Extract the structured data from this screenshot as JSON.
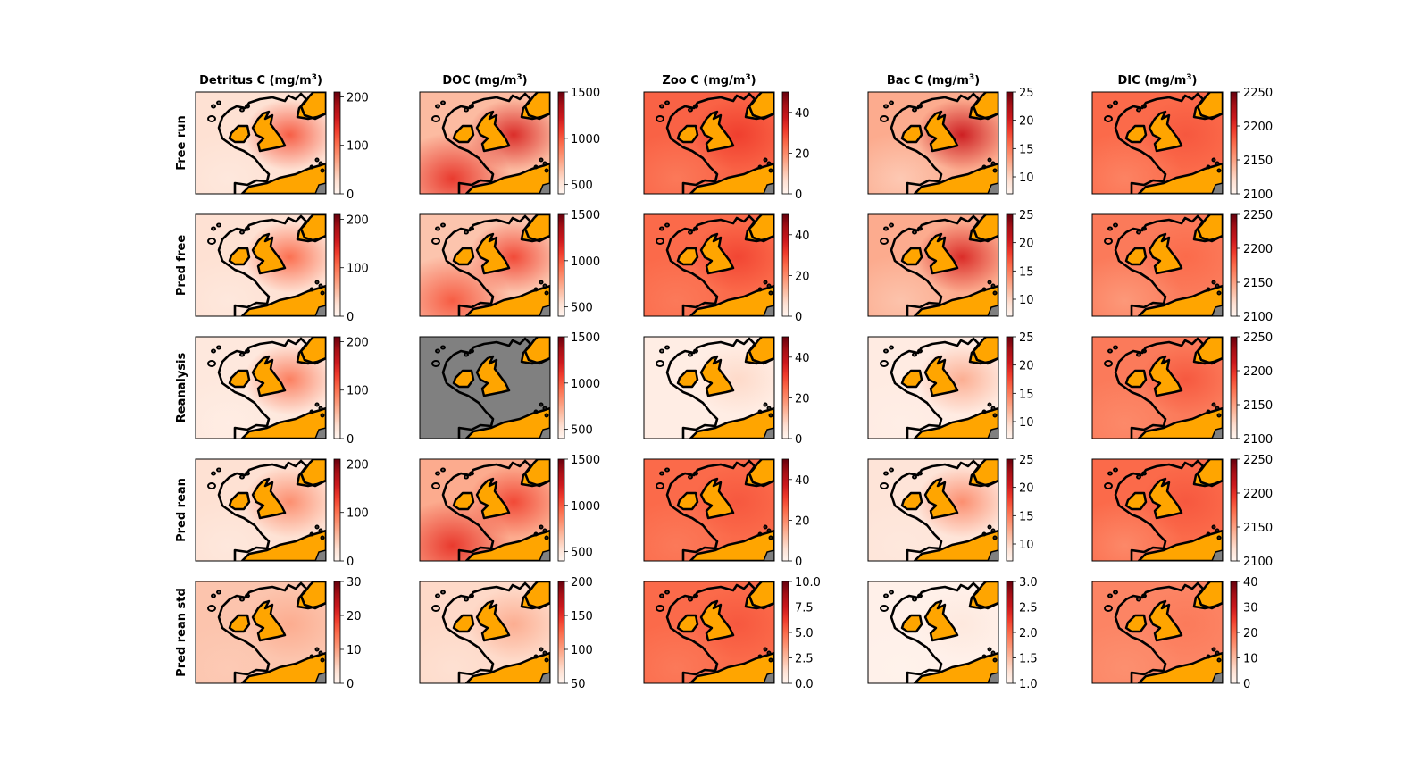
{
  "chart_data": {
    "type": "heatmap",
    "layout": "grid of spatial field maps (5 rows x 5 columns) with per-panel colorbars",
    "colormap": "Reds",
    "land_color": "#ffa500",
    "masked_color": "#808080",
    "coastline_color": "#000000",
    "columns": [
      {
        "key": "det",
        "title": "Detritus C (mg/m",
        "superscript": "3",
        "title_close": ")"
      },
      {
        "key": "doc",
        "title": "DOC (mg/m",
        "superscript": "3",
        "title_close": ")"
      },
      {
        "key": "zoo",
        "title": "Zoo C (mg/m",
        "superscript": "3",
        "title_close": ")"
      },
      {
        "key": "bac",
        "title": "Bac C (mg/m",
        "superscript": "3",
        "title_close": ")"
      },
      {
        "key": "dic",
        "title": "DIC (mg/m",
        "superscript": "3",
        "title_close": ")"
      }
    ],
    "rows": [
      "Free run",
      "Pred free",
      "Reanalysis",
      "Pred rean",
      "Pred rean std"
    ],
    "colorbars": [
      [
        {
          "vmin": 0,
          "vmax": 210,
          "ticks": [
            0,
            100,
            200
          ],
          "labels": [
            "0",
            "100",
            "200"
          ]
        },
        {
          "vmin": 400,
          "vmax": 1500,
          "ticks": [
            500,
            1000,
            1500
          ],
          "labels": [
            "500",
            "1000",
            "1500"
          ]
        },
        {
          "vmin": 0,
          "vmax": 50,
          "ticks": [
            0,
            20,
            40
          ],
          "labels": [
            "0",
            "20",
            "40"
          ]
        },
        {
          "vmin": 7,
          "vmax": 25,
          "ticks": [
            10,
            15,
            20,
            25
          ],
          "labels": [
            "10",
            "15",
            "20",
            "25"
          ]
        },
        {
          "vmin": 2100,
          "vmax": 2250,
          "ticks": [
            2100,
            2150,
            2200,
            2250
          ],
          "labels": [
            "2100",
            "2150",
            "2200",
            "2250"
          ]
        }
      ],
      [
        {
          "vmin": 0,
          "vmax": 210,
          "ticks": [
            0,
            100,
            200
          ],
          "labels": [
            "0",
            "100",
            "200"
          ]
        },
        {
          "vmin": 400,
          "vmax": 1500,
          "ticks": [
            500,
            1000,
            1500
          ],
          "labels": [
            "500",
            "1000",
            "1500"
          ]
        },
        {
          "vmin": 0,
          "vmax": 50,
          "ticks": [
            0,
            20,
            40
          ],
          "labels": [
            "0",
            "20",
            "40"
          ]
        },
        {
          "vmin": 7,
          "vmax": 25,
          "ticks": [
            10,
            15,
            20,
            25
          ],
          "labels": [
            "10",
            "15",
            "20",
            "25"
          ]
        },
        {
          "vmin": 2100,
          "vmax": 2250,
          "ticks": [
            2100,
            2150,
            2200,
            2250
          ],
          "labels": [
            "2100",
            "2150",
            "2200",
            "2250"
          ]
        }
      ],
      [
        {
          "vmin": 0,
          "vmax": 210,
          "ticks": [
            0,
            100,
            200
          ],
          "labels": [
            "0",
            "100",
            "200"
          ]
        },
        {
          "vmin": 400,
          "vmax": 1500,
          "ticks": [
            500,
            1000,
            1500
          ],
          "labels": [
            "500",
            "1000",
            "1500"
          ]
        },
        {
          "vmin": 0,
          "vmax": 50,
          "ticks": [
            0,
            20,
            40
          ],
          "labels": [
            "0",
            "20",
            "40"
          ]
        },
        {
          "vmin": 7,
          "vmax": 25,
          "ticks": [
            10,
            15,
            20,
            25
          ],
          "labels": [
            "10",
            "15",
            "20",
            "25"
          ]
        },
        {
          "vmin": 2100,
          "vmax": 2250,
          "ticks": [
            2100,
            2150,
            2200,
            2250
          ],
          "labels": [
            "2100",
            "2150",
            "2200",
            "2250"
          ]
        }
      ],
      [
        {
          "vmin": 0,
          "vmax": 210,
          "ticks": [
            0,
            100,
            200
          ],
          "labels": [
            "0",
            "100",
            "200"
          ]
        },
        {
          "vmin": 400,
          "vmax": 1500,
          "ticks": [
            500,
            1000,
            1500
          ],
          "labels": [
            "500",
            "1000",
            "1500"
          ]
        },
        {
          "vmin": 0,
          "vmax": 50,
          "ticks": [
            0,
            20,
            40
          ],
          "labels": [
            "0",
            "20",
            "40"
          ]
        },
        {
          "vmin": 7,
          "vmax": 25,
          "ticks": [
            10,
            15,
            20,
            25
          ],
          "labels": [
            "10",
            "15",
            "20",
            "25"
          ]
        },
        {
          "vmin": 2100,
          "vmax": 2250,
          "ticks": [
            2100,
            2150,
            2200,
            2250
          ],
          "labels": [
            "2100",
            "2150",
            "2200",
            "2250"
          ]
        }
      ],
      [
        {
          "vmin": 0,
          "vmax": 30,
          "ticks": [
            0,
            10,
            20,
            30
          ],
          "labels": [
            "0",
            "10",
            "20",
            "30"
          ]
        },
        {
          "vmin": 50,
          "vmax": 200,
          "ticks": [
            50,
            100,
            150,
            200
          ],
          "labels": [
            "50",
            "100",
            "150",
            "200"
          ]
        },
        {
          "vmin": 0,
          "vmax": 10,
          "ticks": [
            0,
            2.5,
            5,
            7.5,
            10
          ],
          "labels": [
            "0.0",
            "2.5",
            "5.0",
            "7.5",
            "10.0"
          ]
        },
        {
          "vmin": 1,
          "vmax": 3,
          "ticks": [
            1,
            1.5,
            2,
            2.5,
            3
          ],
          "labels": [
            "1.0",
            "1.5",
            "2.0",
            "2.5",
            "3.0"
          ]
        },
        {
          "vmin": 0,
          "vmax": 40,
          "ticks": [
            0,
            10,
            20,
            30,
            40
          ],
          "labels": [
            "0",
            "10",
            "20",
            "30",
            "40"
          ]
        }
      ]
    ],
    "panels": [
      [
        {
          "sea_level": 0.12,
          "hotspot_level": 0.55,
          "sw_level": 0.08,
          "masked": false
        },
        {
          "sea_level": 0.25,
          "hotspot_level": 0.7,
          "sw_level": 0.65,
          "masked": false
        },
        {
          "sea_level": 0.52,
          "hotspot_level": 0.62,
          "sw_level": 0.45,
          "masked": false
        },
        {
          "sea_level": 0.3,
          "hotspot_level": 0.75,
          "sw_level": 0.2,
          "masked": false
        },
        {
          "sea_level": 0.5,
          "hotspot_level": 0.55,
          "sw_level": 0.42,
          "masked": false
        }
      ],
      [
        {
          "sea_level": 0.12,
          "hotspot_level": 0.5,
          "sw_level": 0.08,
          "masked": false
        },
        {
          "sea_level": 0.22,
          "hotspot_level": 0.6,
          "sw_level": 0.55,
          "masked": false
        },
        {
          "sea_level": 0.5,
          "hotspot_level": 0.6,
          "sw_level": 0.45,
          "masked": false
        },
        {
          "sea_level": 0.3,
          "hotspot_level": 0.7,
          "sw_level": 0.22,
          "masked": false
        },
        {
          "sea_level": 0.45,
          "hotspot_level": 0.5,
          "sw_level": 0.35,
          "masked": false
        }
      ],
      [
        {
          "sea_level": 0.08,
          "hotspot_level": 0.45,
          "sw_level": 0.05,
          "masked": false
        },
        {
          "sea_level": 0.0,
          "hotspot_level": 0.0,
          "sw_level": 0.0,
          "masked": true
        },
        {
          "sea_level": 0.05,
          "hotspot_level": 0.15,
          "sw_level": 0.05,
          "masked": false
        },
        {
          "sea_level": 0.06,
          "hotspot_level": 0.3,
          "sw_level": 0.04,
          "masked": false
        },
        {
          "sea_level": 0.45,
          "hotspot_level": 0.55,
          "sw_level": 0.4,
          "masked": false
        }
      ],
      [
        {
          "sea_level": 0.12,
          "hotspot_level": 0.4,
          "sw_level": 0.08,
          "masked": false
        },
        {
          "sea_level": 0.3,
          "hotspot_level": 0.6,
          "sw_level": 0.65,
          "masked": false
        },
        {
          "sea_level": 0.5,
          "hotspot_level": 0.55,
          "sw_level": 0.45,
          "masked": false
        },
        {
          "sea_level": 0.1,
          "hotspot_level": 0.4,
          "sw_level": 0.08,
          "masked": false
        },
        {
          "sea_level": 0.5,
          "hotspot_level": 0.55,
          "sw_level": 0.4,
          "masked": false
        }
      ],
      [
        {
          "sea_level": 0.22,
          "hotspot_level": 0.3,
          "sw_level": 0.2,
          "masked": false
        },
        {
          "sea_level": 0.15,
          "hotspot_level": 0.3,
          "sw_level": 0.12,
          "masked": false
        },
        {
          "sea_level": 0.5,
          "hotspot_level": 0.55,
          "sw_level": 0.45,
          "masked": false
        },
        {
          "sea_level": 0.03,
          "hotspot_level": 0.08,
          "sw_level": 0.02,
          "masked": false
        },
        {
          "sea_level": 0.42,
          "hotspot_level": 0.45,
          "sw_level": 0.38,
          "masked": false
        }
      ]
    ]
  }
}
